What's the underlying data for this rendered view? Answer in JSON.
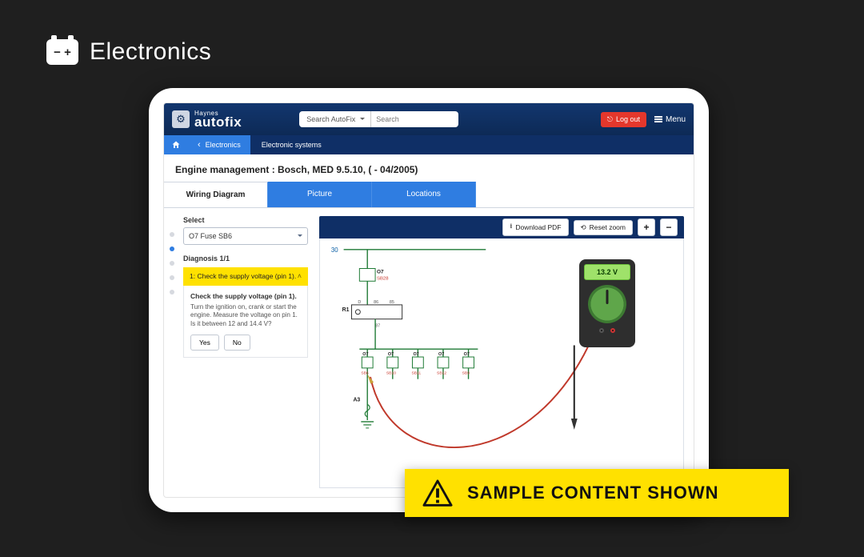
{
  "header": {
    "title": "Electronics",
    "icon_glyph": "− +"
  },
  "appbar": {
    "brand_top": "Haynes",
    "brand_bottom": "autofix",
    "search_scope": "Search AutoFix",
    "search_placeholder": "Search",
    "logout_label": "Log out",
    "menu_label": "Menu"
  },
  "breadcrumb": {
    "back_label": "Electronics",
    "current_label": "Electronic systems"
  },
  "page_title": "Engine management :  Bosch, MED 9.5.10, ( - 04/2005)",
  "tabs": {
    "wiring": "Wiring Diagram",
    "picture": "Picture",
    "locations": "Locations"
  },
  "sidebar": {
    "select_label": "Select",
    "select_value": "O7  Fuse  SB6",
    "diagnosis_label": "Diagnosis 1/1",
    "step_title": "1: Check the supply voltage (pin 1).",
    "step_heading": "Check the supply voltage (pin 1).",
    "step_body": "Turn the ignition on, crank or start the engine. Measure the voltage on pin 1. Is it between 12 and 14.4 V?",
    "yes_label": "Yes",
    "no_label": "No"
  },
  "toolbar": {
    "download_label": "Download PDF",
    "reset_label": "Reset zoom",
    "zoom_in": "+",
    "zoom_out": "−"
  },
  "meter": {
    "reading": "13.2 V"
  },
  "diagram": {
    "top_label": "30",
    "top_node": {
      "id": "O7",
      "sub": "SB28"
    },
    "relay_label": "R1",
    "relay_pins": [
      "D",
      "86",
      "85"
    ],
    "relay_out": "87",
    "bus_nodes": [
      {
        "id": "O7",
        "sub": "SB6"
      },
      {
        "id": "O7",
        "sub": "SB10"
      },
      {
        "id": "O7",
        "sub": "SB11"
      },
      {
        "id": "O7",
        "sub": "SB12"
      },
      {
        "id": "O7",
        "sub": "SB9"
      }
    ],
    "ground_label": "A3",
    "colors": {
      "wire": "#1e7a34",
      "label_red": "#c9372c",
      "lead_red": "#c0392b",
      "lead_black": "#222222"
    }
  },
  "banner": {
    "text": "SAMPLE CONTENT SHOWN"
  }
}
